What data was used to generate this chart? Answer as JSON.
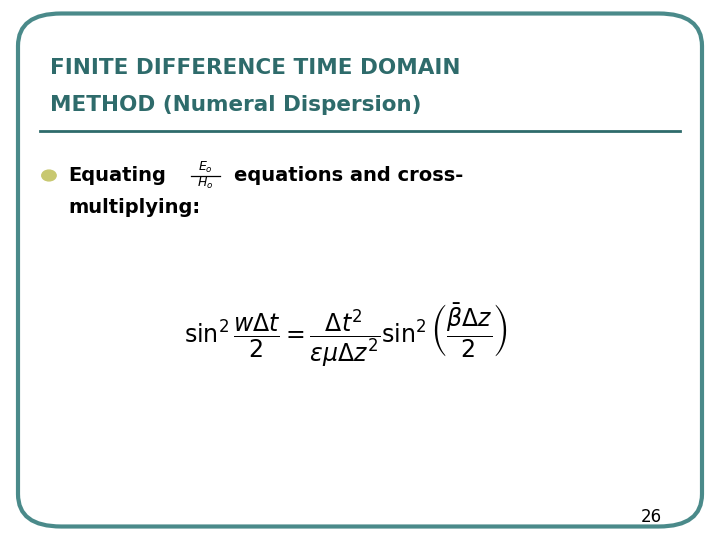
{
  "title_line1": "FINITE DIFFERENCE TIME DOMAIN",
  "title_line2": "METHOD (Numeral Dispersion)",
  "title_color": "#2E6B6B",
  "background_color": "#FFFFFF",
  "border_color": "#4A8A8A",
  "bullet_color": "#C8C870",
  "equation": "\\sin^2 \\dfrac{w\\Delta t}{2} = \\dfrac{\\Delta t^2}{\\varepsilon\\mu\\Delta z^2} \\sin^2 \\left(\\dfrac{\\bar{\\beta}\\Delta z}{2}\\right)",
  "page_number": "26",
  "fig_width": 7.2,
  "fig_height": 5.4,
  "dpi": 100
}
